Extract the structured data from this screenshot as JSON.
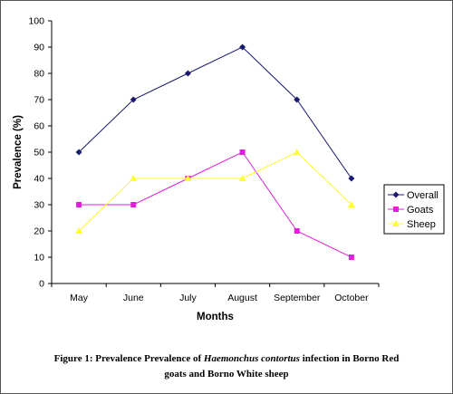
{
  "chart_data": {
    "type": "line",
    "categories": [
      "May",
      "June",
      "July",
      "August",
      "September",
      "October"
    ],
    "series": [
      {
        "name": "Overall",
        "values": [
          50,
          70,
          80,
          90,
          70,
          40
        ],
        "color": "#191970",
        "marker": "diamond"
      },
      {
        "name": "Goats",
        "values": [
          30,
          30,
          40,
          50,
          20,
          10
        ],
        "color": "#e020d8",
        "marker": "square"
      },
      {
        "name": "Sheep",
        "values": [
          20,
          40,
          40,
          40,
          50,
          30
        ],
        "color": "#ffff33",
        "marker": "triangle"
      }
    ],
    "xlabel": "Months",
    "ylabel": "Prevalence (%)",
    "ylim": [
      0,
      100
    ],
    "yticks": [
      0,
      10,
      20,
      30,
      40,
      50,
      60,
      70,
      80,
      90,
      100
    ],
    "grid": false,
    "legend_position": "right"
  },
  "caption": {
    "prefix": "Figure 1: Prevalence Prevalence  of ",
    "species": "Haemonchus contortus",
    "suffix_line1": " infection in Borno Red",
    "line2": "goats and Borno White sheep"
  }
}
